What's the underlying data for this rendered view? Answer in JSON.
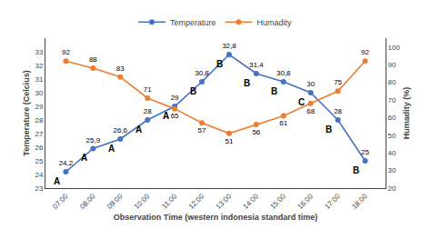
{
  "chart_data": {
    "type": "line",
    "x_label": "Observation Time (western indonesia standard time)",
    "y_label": "Temperature (Celcius)",
    "y2_label": "Humadity (%)",
    "categories": [
      "07:00",
      "08:00",
      "09:00",
      "10:00",
      "11:00",
      "12:00",
      "13:00",
      "14:00",
      "15:00",
      "16:00",
      "17:00",
      "18:00"
    ],
    "series": [
      {
        "name": "Temperature",
        "color": "#4472C4",
        "marker": "circle",
        "values": [
          24.2,
          25.9,
          26.6,
          28,
          29,
          30.8,
          32.8,
          31.4,
          30.8,
          30,
          28,
          25
        ],
        "value_labels": [
          "24,2",
          "25,9",
          "26,6",
          "28",
          "29",
          "30,8",
          "32,8",
          "31,4",
          "30,8",
          "30",
          "28",
          "25"
        ]
      },
      {
        "name": "Humadity",
        "color": "#ED7D31",
        "marker": "circle",
        "axis": "y2",
        "values": [
          92,
          88,
          83,
          71,
          65,
          57,
          51,
          56,
          61,
          68,
          75,
          92
        ]
      }
    ],
    "ylim": [
      23,
      34
    ],
    "yticks": [
      23,
      24,
      25,
      26,
      27,
      28,
      29,
      30,
      31,
      32,
      33
    ],
    "y2lim": [
      20,
      105
    ],
    "y2ticks": [
      20,
      30,
      40,
      50,
      60,
      70,
      80,
      90,
      100
    ],
    "data_labels": true,
    "legend": "top",
    "grid": false,
    "annotations": [
      {
        "text": "A",
        "x": "07:00"
      },
      {
        "text": "A",
        "x": "08:00"
      },
      {
        "text": "A",
        "x": "09:00"
      },
      {
        "text": "A",
        "x": "10:00"
      },
      {
        "text": "A",
        "x": "11:00"
      },
      {
        "text": "B",
        "x": "12:00"
      },
      {
        "text": "B",
        "x": "13:00"
      },
      {
        "text": "B",
        "x": "14:00"
      },
      {
        "text": "B",
        "x": "15:00"
      },
      {
        "text": "C",
        "x": "16:00"
      },
      {
        "text": "B",
        "x": "17:00"
      },
      {
        "text": "B",
        "x": "18:00"
      }
    ]
  }
}
